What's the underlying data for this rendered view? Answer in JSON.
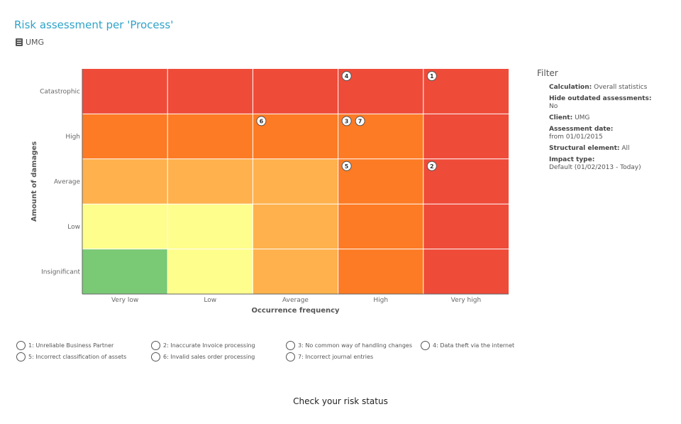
{
  "header": {
    "title": "Risk assessment per 'Process'",
    "client_icon": "building-icon",
    "client": "UMG"
  },
  "chart_data": {
    "type": "heatmap",
    "title": "",
    "xlabel": "Occurrence frequency",
    "ylabel": "Amount of damages",
    "x_categories": [
      "Very low",
      "Low",
      "Average",
      "High",
      "Very high"
    ],
    "y_categories": [
      "Insignificant",
      "Low",
      "Average",
      "High",
      "Catastrophic"
    ],
    "level_colors": {
      "green": "#7ac975",
      "yellow": "#fefe8c",
      "light_orange": "#feb14c",
      "orange": "#fd7b24",
      "red": "#ef4b39"
    },
    "cells": [
      [
        "green",
        "yellow",
        "light_orange",
        "orange",
        "red"
      ],
      [
        "yellow",
        "yellow",
        "light_orange",
        "orange",
        "red"
      ],
      [
        "light_orange",
        "light_orange",
        "light_orange",
        "orange",
        "red"
      ],
      [
        "orange",
        "orange",
        "orange",
        "orange",
        "red"
      ],
      [
        "red",
        "red",
        "red",
        "red",
        "red"
      ]
    ],
    "markers": [
      {
        "id": "1",
        "x": "Very high",
        "y": "Catastrophic"
      },
      {
        "id": "2",
        "x": "Very high",
        "y": "Average"
      },
      {
        "id": "3",
        "x": "High",
        "y": "High"
      },
      {
        "id": "4",
        "x": "High",
        "y": "Catastrophic"
      },
      {
        "id": "5",
        "x": "High",
        "y": "Average"
      },
      {
        "id": "6",
        "x": "Average",
        "y": "High"
      },
      {
        "id": "7",
        "x": "High",
        "y": "High"
      }
    ],
    "grid": true
  },
  "filter": {
    "heading": "Filter",
    "items": [
      {
        "key": "Calculation:",
        "value": "Overall statistics"
      },
      {
        "key": "Hide outdated assessments:",
        "value": "No"
      },
      {
        "key": "Client:",
        "value": "UMG"
      },
      {
        "key": "Assessment date:",
        "value": "from 01/01/2015"
      },
      {
        "key": "Structural element:",
        "value": "All"
      },
      {
        "key": "Impact type:",
        "value": "Default (01/02/2013 - Today)"
      }
    ]
  },
  "legend": [
    "1: Unreliable  Business  Partner",
    "2: Inaccurate Invoice processing",
    "3: No common way of handling changes",
    "4: Data theft via the internet",
    "5: Incorrect classification of assets",
    "6: Invalid sales order processing",
    "7: Incorrect journal entries"
  ],
  "footer": {
    "cta": "Check your risk status"
  }
}
